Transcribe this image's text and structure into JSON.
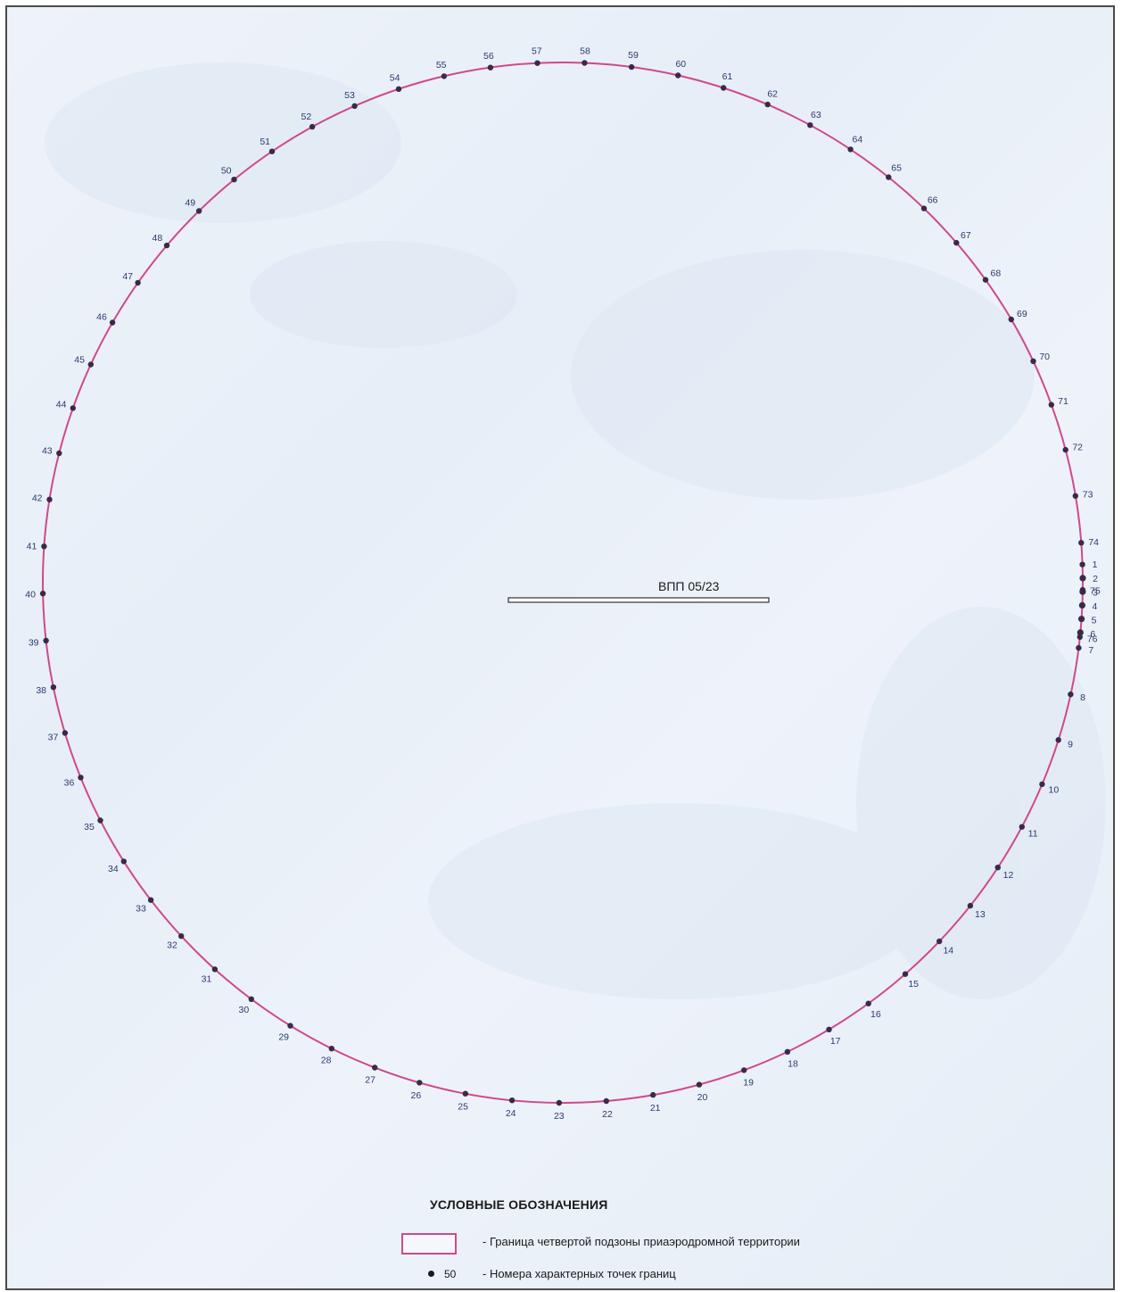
{
  "runway": {
    "label": "ВПП 05/23"
  },
  "boundary": {
    "stroke_color": "#d0498a",
    "point_color": "#3a2a4a",
    "point_numbers": [
      "1",
      "2",
      "3",
      "4",
      "5",
      "6",
      "7",
      "8",
      "9",
      "10",
      "11",
      "12",
      "13",
      "14",
      "15",
      "16",
      "17",
      "18",
      "19",
      "20",
      "21",
      "22",
      "23",
      "24",
      "25",
      "26",
      "27",
      "28",
      "29",
      "30",
      "31",
      "32",
      "33",
      "34",
      "35",
      "36",
      "37",
      "38",
      "39",
      "40",
      "41",
      "42",
      "43",
      "44",
      "45",
      "46",
      "47",
      "48",
      "49",
      "50",
      "51",
      "52",
      "53",
      "54",
      "55",
      "56",
      "57",
      "58",
      "59",
      "60",
      "61",
      "62",
      "63",
      "64",
      "65",
      "66",
      "67",
      "68",
      "69",
      "70",
      "71",
      "72",
      "73",
      "74",
      "75",
      "76"
    ]
  },
  "legend": {
    "title": "УСЛОВНЫЕ ОБОЗНАЧЕНИЯ",
    "boundary_item": "- Граница четвертой подзоны приаэродромной территории",
    "point_sample_number": "50",
    "point_item": "- Номера характерных точек границ"
  }
}
